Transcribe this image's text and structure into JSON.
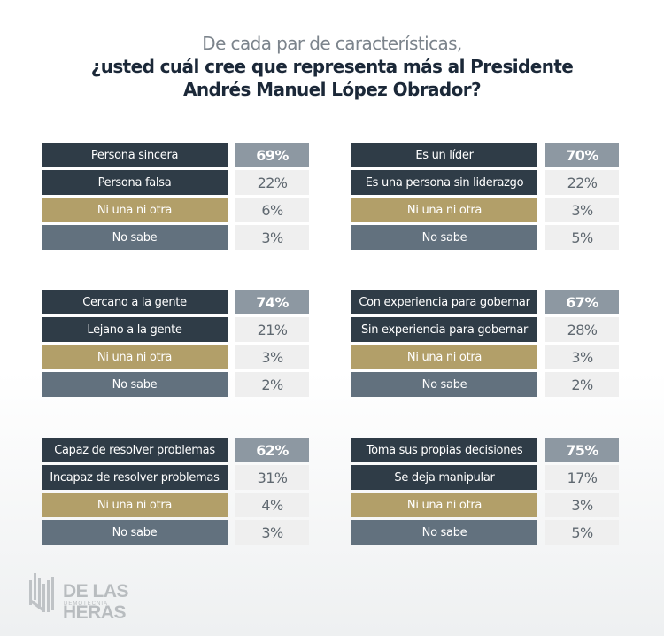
{
  "header": {
    "subtitle": "De cada par de características,",
    "title_line1": "¿usted cuál cree que representa más al Presidente",
    "title_line2": "Andrés Manuel López Obrador?"
  },
  "colors": {
    "primary_row": "#2f3c47",
    "neither_row": "#b29f69",
    "dont_know_row": "#62717e",
    "highlight_value": "#8d98a2",
    "value_bg": "#efefef"
  },
  "logo": {
    "brand": "DE LAS HERAS",
    "tagline": "DEMOTECNIA",
    "icon": "building-columns-logo-icon"
  },
  "chart_data": {
    "type": "table",
    "title": "De cada par de características, ¿usted cuál cree que representa más al Presidente Andrés Manuel López Obrador?",
    "unit": "%",
    "panels": [
      {
        "rows": [
          {
            "label": "Persona sincera",
            "value": 69,
            "display": "69%"
          },
          {
            "label": "Persona falsa",
            "value": 22,
            "display": "22%"
          },
          {
            "label": "Ni una ni otra",
            "value": 6,
            "display": "6%"
          },
          {
            "label": "No sabe",
            "value": 3,
            "display": "3%"
          }
        ]
      },
      {
        "rows": [
          {
            "label": "Es un líder",
            "value": 70,
            "display": "70%"
          },
          {
            "label": "Es una persona sin liderazgo",
            "value": 22,
            "display": "22%"
          },
          {
            "label": "Ni una ni otra",
            "value": 3,
            "display": "3%"
          },
          {
            "label": "No sabe",
            "value": 5,
            "display": "5%"
          }
        ]
      },
      {
        "rows": [
          {
            "label": "Cercano a la gente",
            "value": 74,
            "display": "74%"
          },
          {
            "label": "Lejano a la gente",
            "value": 21,
            "display": "21%"
          },
          {
            "label": "Ni una ni otra",
            "value": 3,
            "display": "3%"
          },
          {
            "label": "No sabe",
            "value": 2,
            "display": "2%"
          }
        ]
      },
      {
        "rows": [
          {
            "label": "Con experiencia para gobernar",
            "value": 67,
            "display": "67%"
          },
          {
            "label": "Sin experiencia para gobernar",
            "value": 28,
            "display": "28%"
          },
          {
            "label": "Ni una ni otra",
            "value": 3,
            "display": "3%"
          },
          {
            "label": "No sabe",
            "value": 2,
            "display": "2%"
          }
        ]
      },
      {
        "rows": [
          {
            "label": "Capaz de resolver problemas",
            "value": 62,
            "display": "62%"
          },
          {
            "label": "Incapaz de resolver problemas",
            "value": 31,
            "display": "31%"
          },
          {
            "label": "Ni una ni otra",
            "value": 4,
            "display": "4%"
          },
          {
            "label": "No sabe",
            "value": 3,
            "display": "3%"
          }
        ]
      },
      {
        "rows": [
          {
            "label": "Toma sus propias decisiones",
            "value": 75,
            "display": "75%"
          },
          {
            "label": "Se deja manipular",
            "value": 17,
            "display": "17%"
          },
          {
            "label": "Ni una ni otra",
            "value": 3,
            "display": "3%"
          },
          {
            "label": "No sabe",
            "value": 5,
            "display": "5%"
          }
        ]
      }
    ]
  }
}
